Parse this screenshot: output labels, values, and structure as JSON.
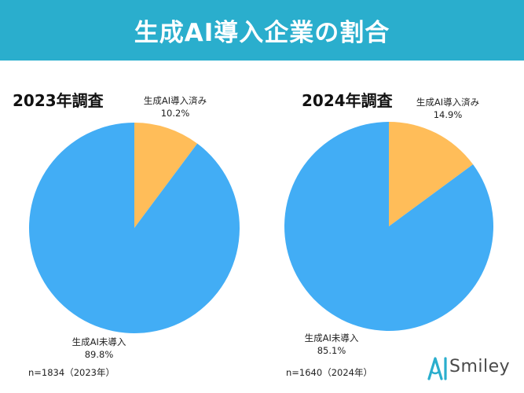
{
  "header": {
    "title": "生成AI導入企業の割合"
  },
  "colors": {
    "header_bg": "#2aaecd",
    "adopted": "#ffbd59",
    "not_adopted": "#42adf5"
  },
  "panels": [
    {
      "title": "2023年調査",
      "sample": "n=1834（2023年）"
    },
    {
      "title": "2024年調査",
      "sample": "n=1640（2024年）"
    }
  ],
  "chart_data": [
    {
      "type": "pie",
      "title": "2023年調査",
      "categories": [
        "生成AI導入済み",
        "生成AI未導入"
      ],
      "values": [
        10.2,
        89.8
      ],
      "value_labels": [
        "10.2%",
        "89.8%"
      ],
      "colors": [
        "#ffbd59",
        "#42adf5"
      ],
      "start_angle": "12 o'clock, clockwise"
    },
    {
      "type": "pie",
      "title": "2024年調査",
      "categories": [
        "生成AI導入済み",
        "生成AI未導入"
      ],
      "values": [
        14.9,
        85.1
      ],
      "value_labels": [
        "14.9%",
        "85.1%"
      ],
      "colors": [
        "#ffbd59",
        "#42adf5"
      ],
      "start_angle": "12 o'clock, clockwise"
    }
  ],
  "logo": {
    "text": "Smiley",
    "icon": "smiley-logo-icon"
  }
}
